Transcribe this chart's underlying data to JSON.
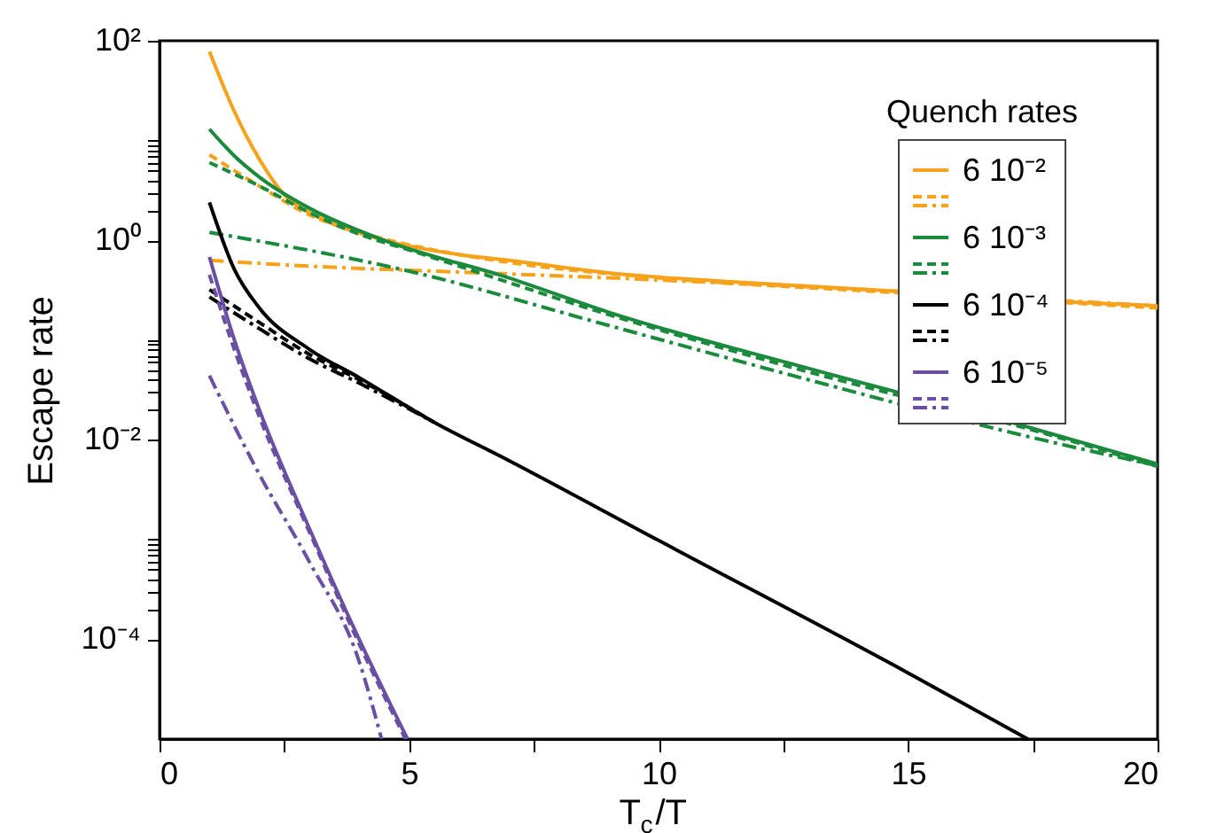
{
  "chart_data": {
    "type": "line",
    "xlabel": "T$_{c}$/T",
    "ylabel": "Escape rate",
    "legend_title": "Quench rates",
    "legend": "top right",
    "log": "y",
    "grid": false,
    "xlim": [
      0,
      20
    ],
    "xticks": [
      0,
      {
        "value": 2.5,
        "label": null
      },
      5,
      {
        "value": 7.5,
        "label": null
      },
      10,
      {
        "value": 12.5,
        "label": null
      },
      15,
      {
        "value": 17.5,
        "label": null
      },
      20
    ],
    "ylim": [
      1e-05,
      100
    ],
    "yticks": [
      {
        "value": 0.0001,
        "label": "10⁻⁴"
      },
      {
        "value": 0.0002,
        "label": null
      },
      {
        "value": 0.0003,
        "label": null
      },
      {
        "value": 0.0004,
        "label": null
      },
      {
        "value": 0.0005,
        "label": null
      },
      {
        "value": 0.0006,
        "label": null
      },
      {
        "value": 0.0007,
        "label": null
      },
      {
        "value": 0.0008,
        "label": null
      },
      {
        "value": 0.0009,
        "label": null
      },
      {
        "value": 0.001,
        "label": null
      },
      {
        "value": 0.01,
        "label": "10⁻²"
      },
      {
        "value": 0.02,
        "label": null
      },
      {
        "value": 0.03,
        "label": null
      },
      {
        "value": 0.04,
        "label": null
      },
      {
        "value": 0.05,
        "label": null
      },
      {
        "value": 0.06,
        "label": null
      },
      {
        "value": 0.07,
        "label": null
      },
      {
        "value": 0.08,
        "label": null
      },
      {
        "value": 0.09,
        "label": null
      },
      {
        "value": 0.1,
        "label": null
      },
      {
        "value": 1,
        "label": "10⁰"
      },
      {
        "value": 2,
        "label": null
      },
      {
        "value": 3,
        "label": null
      },
      {
        "value": 4,
        "label": null
      },
      {
        "value": 5,
        "label": null
      },
      {
        "value": 6,
        "label": null
      },
      {
        "value": 7,
        "label": null
      },
      {
        "value": 8,
        "label": null
      },
      {
        "value": 9,
        "label": null
      },
      {
        "value": 10,
        "label": null
      },
      {
        "value": 100,
        "label": "10²"
      }
    ],
    "series": [
      {
        "name": "6 10⁻²",
        "color": "#f7a21b",
        "line_style": "solid",
        "x": [
          1,
          1.5,
          2,
          2.5,
          3,
          3.5,
          4.5,
          6,
          7,
          9,
          12,
          14.7,
          18.3,
          20
        ],
        "values": [
          78,
          19.5,
          6.5,
          2.85,
          1.9,
          1.45,
          1.0,
          0.72,
          0.63,
          0.47,
          0.37,
          0.31,
          0.24,
          0.22
        ]
      },
      {
        "color": "#f7a21b",
        "line_style": "dashed",
        "x": [
          1,
          2,
          3,
          4,
          5,
          7,
          10,
          14.7,
          18.3,
          20
        ],
        "values": [
          7.2,
          3.5,
          1.8,
          1.2,
          0.9,
          0.6,
          0.42,
          0.3,
          0.235,
          0.21
        ]
      },
      {
        "color": "#f7a21b",
        "line_style": "dashdot",
        "x": [
          1,
          3,
          6,
          9,
          12,
          14.7,
          18.3,
          20
        ],
        "values": [
          0.63,
          0.55,
          0.48,
          0.42,
          0.36,
          0.31,
          0.245,
          0.22
        ]
      },
      {
        "name": "6 10⁻³",
        "color": "#1a8a3c",
        "line_style": "solid",
        "x": [
          1,
          1.5,
          2,
          3,
          4.5,
          7,
          9,
          13,
          17.5,
          20
        ],
        "values": [
          13,
          7,
          4.3,
          2.1,
          1.0,
          0.42,
          0.19,
          0.052,
          0.013,
          0.0057
        ]
      },
      {
        "color": "#1a8a3c",
        "line_style": "dashed",
        "x": [
          1,
          2,
          3,
          4,
          5,
          9,
          13,
          17.5,
          20
        ],
        "values": [
          6.0,
          3.5,
          1.9,
          1.15,
          0.8,
          0.18,
          0.048,
          0.0125,
          0.0054
        ]
      },
      {
        "color": "#1a8a3c",
        "line_style": "dashdot",
        "x": [
          1,
          5,
          9,
          13,
          17.5,
          20
        ],
        "values": [
          1.2,
          0.49,
          0.14,
          0.04,
          0.0105,
          0.0055
        ]
      },
      {
        "name": "6 10⁻⁴",
        "color": "#000000",
        "line_style": "solid",
        "x": [
          1,
          1.5,
          2,
          3,
          4,
          5.5,
          7,
          10,
          15,
          17.4
        ],
        "values": [
          2.4,
          0.51,
          0.21,
          0.081,
          0.042,
          0.015,
          0.0062,
          0.00098,
          4.6e-05,
          1e-05
        ]
      },
      {
        "color": "#000000",
        "line_style": "dashed",
        "x": [
          1,
          2,
          3,
          4,
          5.5
        ],
        "values": [
          0.32,
          0.15,
          0.072,
          0.04,
          0.015
        ]
      },
      {
        "color": "#000000",
        "line_style": "dashdot",
        "x": [
          1,
          2,
          3,
          4,
          5.5
        ],
        "values": [
          0.27,
          0.13,
          0.065,
          0.037,
          0.015
        ]
      },
      {
        "name": "6 10⁻⁵",
        "color": "#6a4fa3",
        "line_style": "solid",
        "x": [
          1,
          1.5,
          2,
          3,
          4,
          4.97
        ],
        "values": [
          0.68,
          0.1,
          0.02,
          0.0013,
          0.0001,
          1e-05
        ]
      },
      {
        "color": "#6a4fa3",
        "line_style": "dashed",
        "x": [
          1,
          1.5,
          2,
          3,
          4,
          4.93
        ],
        "values": [
          0.45,
          0.08,
          0.017,
          0.0012,
          9e-05,
          1e-05
        ]
      },
      {
        "color": "#6a4fa3",
        "line_style": "dashdot",
        "x": [
          1,
          2,
          3,
          4,
          4.45
        ],
        "values": [
          0.044,
          0.0045,
          0.0006,
          6e-05,
          1e-05
        ]
      }
    ]
  }
}
